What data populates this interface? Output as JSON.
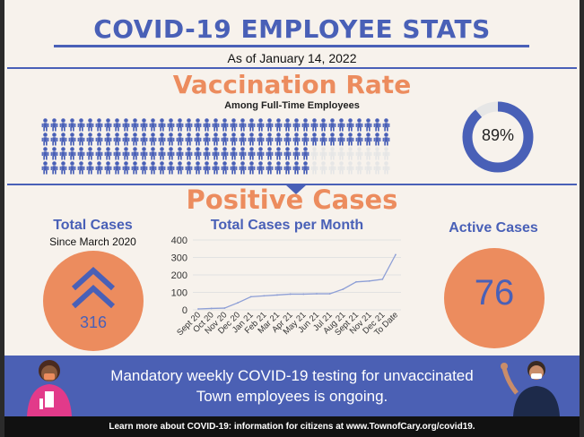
{
  "header": {
    "title": "COVID-19 EMPLOYEE STATS",
    "as_of": "As of January 14, 2022"
  },
  "vaccination": {
    "title": "Vaccination Rate",
    "subtitle": "Among Full-Time Employees",
    "rate_label": "89%",
    "rate_fraction": 0.89,
    "colors": {
      "vaccinated": "#4960b7",
      "unvaccinated": "#e6e6e6"
    }
  },
  "positive": {
    "title": "Positive Cases",
    "total_heading": "Total Cases",
    "total_since": "Since March 2020",
    "total_value": "316",
    "active_heading": "Active Cases",
    "active_value": "76"
  },
  "chart_data": {
    "type": "line",
    "title": "Total Cases per Month",
    "categories": [
      "Sept 20",
      "Oct 20",
      "Nov 20",
      "Dec 20",
      "Jan 21",
      "Feb 21",
      "Mar 21",
      "Apr 21",
      "May 21",
      "Jun 21",
      "Jul 21",
      "Aug 21",
      "Sept 21",
      "Nov 21",
      "Dec 21",
      "To Date"
    ],
    "values": [
      5,
      8,
      10,
      40,
      75,
      80,
      85,
      90,
      90,
      92,
      92,
      118,
      160,
      165,
      175,
      316
    ],
    "y_ticks": [
      "0",
      "100",
      "200",
      "300",
      "400"
    ],
    "ylim": [
      0,
      400
    ],
    "grid": true,
    "colors": {
      "line": "#8e9fd6",
      "grid": "#e2e2e2"
    }
  },
  "banner": {
    "line1": "Mandatory weekly COVID-19 testing for unvaccinated",
    "line2": "Town employees is ongoing."
  },
  "footer": {
    "text": "Learn more about COVID-19: information for citizens at www.TownofCary.org/covid19."
  },
  "colors": {
    "accent_blue": "#4960b7",
    "accent_orange": "#ec8c5e",
    "banner": "#4b60b4"
  }
}
